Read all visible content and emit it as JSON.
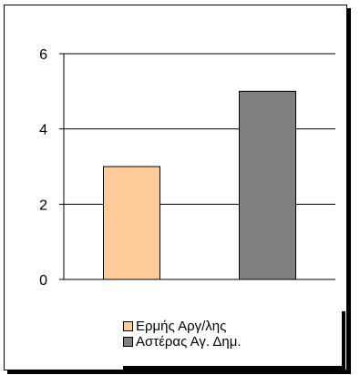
{
  "chart_data": {
    "type": "bar",
    "categories": [
      "Ερμής Αργ/λης",
      "Αστέρας Αγ. Δημ."
    ],
    "values": [
      3,
      5
    ],
    "colors": [
      "#FFCC99",
      "#808080"
    ],
    "ylim": [
      0,
      6
    ],
    "yticks": [
      "0",
      "2",
      "4",
      "6"
    ],
    "grid": true,
    "legend_position": "bottom",
    "legend": [
      {
        "label": "Ερμής Αργ/λης",
        "color": "#FFCC99"
      },
      {
        "label": "Αστέρας Αγ. Δημ.",
        "color": "#808080"
      }
    ]
  }
}
